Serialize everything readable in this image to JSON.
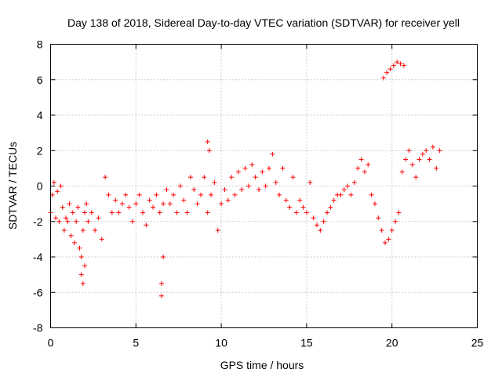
{
  "chart_data": {
    "type": "scatter",
    "title": "Day 138 of 2018, Sidereal Day-to-day VTEC variation (SDTVAR) for receiver yell",
    "xlabel": "GPS time / hours",
    "ylabel": "SDTVAR / TECUs",
    "xlim": [
      0,
      25
    ],
    "ylim": [
      -8,
      8
    ],
    "xticks": [
      0,
      5,
      10,
      15,
      20,
      25
    ],
    "yticks": [
      -8,
      -6,
      -4,
      -2,
      0,
      2,
      4,
      6,
      8
    ],
    "grid": true,
    "marker": "+",
    "color": "#ff0000",
    "series": [
      {
        "name": "SDTVAR",
        "x": [
          0.0,
          0.1,
          0.2,
          0.3,
          0.4,
          0.5,
          0.6,
          0.7,
          0.8,
          0.9,
          1.0,
          1.1,
          1.2,
          1.3,
          1.4,
          1.5,
          1.6,
          1.7,
          1.8,
          1.9,
          2.0,
          2.1,
          2.2,
          2.4,
          2.6,
          2.8,
          3.0,
          3.2,
          3.4,
          3.6,
          3.8,
          4.0,
          4.2,
          4.4,
          4.6,
          4.8,
          5.0,
          5.2,
          5.4,
          5.6,
          5.8,
          6.0,
          6.2,
          6.4,
          6.6,
          6.8,
          7.0,
          7.2,
          7.4,
          7.6,
          7.8,
          8.0,
          8.2,
          8.4,
          8.6,
          8.8,
          9.0,
          9.2,
          9.4,
          9.6,
          9.8,
          10.0,
          10.2,
          10.4,
          10.6,
          10.8,
          11.0,
          11.2,
          11.4,
          11.6,
          11.8,
          12.0,
          12.2,
          12.4,
          12.6,
          12.8,
          13.0,
          13.2,
          13.4,
          13.6,
          13.8,
          14.0,
          14.2,
          14.4,
          14.6,
          14.8,
          15.0,
          15.2,
          15.4,
          15.6,
          15.8,
          16.0,
          16.2,
          16.4,
          16.6,
          16.8,
          17.0,
          17.2,
          17.4,
          17.6,
          17.8,
          18.0,
          18.2,
          18.4,
          18.6,
          18.8,
          19.0,
          19.2,
          19.4,
          19.6,
          19.8,
          20.0,
          20.2,
          20.4,
          20.6,
          20.8,
          21.0,
          21.2,
          21.4,
          21.6,
          21.8,
          22.0,
          22.2,
          22.4,
          22.6,
          22.8,
          19.5,
          19.7,
          19.9,
          20.1,
          20.3,
          20.5,
          20.7,
          1.8,
          1.9,
          2.0,
          6.5,
          6.5,
          6.6,
          9.2,
          9.3
        ],
        "y": [
          -1.5,
          -0.5,
          0.2,
          -1.8,
          -0.3,
          -2.0,
          0.0,
          -1.2,
          -2.5,
          -1.8,
          -2.0,
          -1.0,
          -2.8,
          -1.5,
          -3.2,
          -2.0,
          -1.2,
          -3.5,
          -4.0,
          -2.5,
          -1.5,
          -1.0,
          -2.0,
          -1.5,
          -2.5,
          -1.8,
          -3.0,
          0.5,
          -0.5,
          -1.5,
          -0.8,
          -1.5,
          -1.0,
          -0.5,
          -1.2,
          -2.0,
          -1.0,
          -0.5,
          -1.5,
          -2.2,
          -0.8,
          -1.2,
          -0.5,
          -1.5,
          -1.0,
          -0.2,
          -1.0,
          -0.5,
          -1.5,
          0.0,
          -0.8,
          -1.5,
          0.5,
          -0.2,
          -1.0,
          -0.5,
          0.5,
          -1.5,
          -0.5,
          0.2,
          -2.5,
          -1.0,
          -0.2,
          -0.8,
          0.5,
          -0.5,
          0.8,
          -0.2,
          1.0,
          0.0,
          1.2,
          0.5,
          -0.2,
          0.8,
          0.0,
          1.0,
          1.8,
          0.2,
          -0.5,
          1.0,
          -0.8,
          -1.2,
          0.5,
          -1.5,
          -0.8,
          -1.2,
          -1.5,
          0.2,
          -1.8,
          -2.2,
          -2.5,
          -2.0,
          -1.5,
          -1.2,
          -0.8,
          -0.5,
          -0.5,
          -0.2,
          0.0,
          -0.5,
          0.2,
          1.0,
          1.5,
          0.8,
          1.2,
          -0.5,
          -1.0,
          -1.8,
          -2.5,
          -3.2,
          -3.0,
          -2.5,
          -2.0,
          -1.5,
          0.8,
          1.5,
          2.0,
          1.2,
          0.5,
          1.5,
          1.8,
          2.0,
          1.5,
          2.2,
          1.0,
          2.0,
          6.1,
          6.4,
          6.6,
          6.8,
          7.0,
          6.9,
          6.8,
          -5.0,
          -5.5,
          -4.5,
          -5.5,
          -6.2,
          -4.0,
          2.5,
          2.0
        ]
      }
    ]
  }
}
